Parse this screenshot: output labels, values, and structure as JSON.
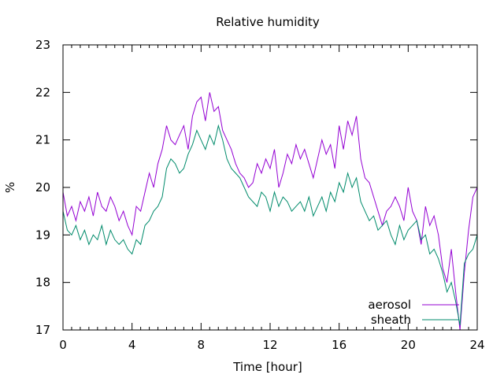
{
  "chart_data": {
    "type": "line",
    "title": "Relative humidity",
    "xlabel": "Time [hour]",
    "ylabel": "%",
    "xlim": [
      0,
      24
    ],
    "ylim": [
      17,
      23
    ],
    "x_ticks": [
      "0",
      "4",
      "8",
      "12",
      "16",
      "20",
      "24"
    ],
    "y_ticks": [
      "17",
      "18",
      "19",
      "20",
      "21",
      "22",
      "23"
    ],
    "grid": false,
    "legend_position": "bottom-right",
    "series": [
      {
        "name": "aerosol",
        "color": "#9400d3",
        "x": [
          0,
          0.25,
          0.5,
          0.75,
          1,
          1.25,
          1.5,
          1.75,
          2,
          2.25,
          2.5,
          2.75,
          3,
          3.25,
          3.5,
          3.75,
          4,
          4.25,
          4.5,
          4.75,
          5,
          5.25,
          5.5,
          5.75,
          6,
          6.25,
          6.5,
          6.75,
          7,
          7.25,
          7.5,
          7.75,
          8,
          8.25,
          8.5,
          8.75,
          9,
          9.25,
          9.5,
          9.75,
          10,
          10.25,
          10.5,
          10.75,
          11,
          11.25,
          11.5,
          11.75,
          12,
          12.25,
          12.5,
          12.75,
          13,
          13.25,
          13.5,
          13.75,
          14,
          14.25,
          14.5,
          14.75,
          15,
          15.25,
          15.5,
          15.75,
          16,
          16.25,
          16.5,
          16.75,
          17,
          17.25,
          17.5,
          17.75,
          18,
          18.25,
          18.5,
          18.75,
          19,
          19.25,
          19.5,
          19.75,
          20,
          20.25,
          20.5,
          20.75,
          21,
          21.25,
          21.5,
          21.75,
          22,
          22.25,
          22.5,
          22.75,
          23,
          23.25,
          23.5,
          23.75,
          24
        ],
        "values": [
          19.9,
          19.4,
          19.6,
          19.3,
          19.7,
          19.5,
          19.8,
          19.4,
          19.9,
          19.6,
          19.5,
          19.8,
          19.6,
          19.3,
          19.5,
          19.2,
          19.0,
          19.6,
          19.5,
          19.9,
          20.3,
          20.0,
          20.5,
          20.8,
          21.3,
          21.0,
          20.9,
          21.1,
          21.3,
          20.8,
          21.5,
          21.8,
          21.9,
          21.4,
          22.0,
          21.6,
          21.7,
          21.2,
          21.0,
          20.8,
          20.5,
          20.3,
          20.2,
          20.0,
          20.1,
          20.5,
          20.3,
          20.6,
          20.4,
          20.8,
          20.0,
          20.3,
          20.7,
          20.5,
          20.9,
          20.6,
          20.8,
          20.5,
          20.2,
          20.6,
          21.0,
          20.7,
          20.9,
          20.4,
          21.3,
          20.8,
          21.4,
          21.1,
          21.5,
          20.6,
          20.2,
          20.1,
          19.8,
          19.5,
          19.2,
          19.5,
          19.6,
          19.8,
          19.6,
          19.3,
          20.0,
          19.5,
          19.3,
          18.8,
          19.6,
          19.2,
          19.4,
          19.0,
          18.3,
          18.0,
          18.7,
          17.8,
          17.0,
          18.2,
          19.1,
          19.8,
          20.0
        ]
      },
      {
        "name": "sheath",
        "color": "#008b6b",
        "x": [
          0,
          0.25,
          0.5,
          0.75,
          1,
          1.25,
          1.5,
          1.75,
          2,
          2.25,
          2.5,
          2.75,
          3,
          3.25,
          3.5,
          3.75,
          4,
          4.25,
          4.5,
          4.75,
          5,
          5.25,
          5.5,
          5.75,
          6,
          6.25,
          6.5,
          6.75,
          7,
          7.25,
          7.5,
          7.75,
          8,
          8.25,
          8.5,
          8.75,
          9,
          9.25,
          9.5,
          9.75,
          10,
          10.25,
          10.5,
          10.75,
          11,
          11.25,
          11.5,
          11.75,
          12,
          12.25,
          12.5,
          12.75,
          13,
          13.25,
          13.5,
          13.75,
          14,
          14.25,
          14.5,
          14.75,
          15,
          15.25,
          15.5,
          15.75,
          16,
          16.25,
          16.5,
          16.75,
          17,
          17.25,
          17.5,
          17.75,
          18,
          18.25,
          18.5,
          18.75,
          19,
          19.25,
          19.5,
          19.75,
          20,
          20.25,
          20.5,
          20.75,
          21,
          21.25,
          21.5,
          21.75,
          22,
          22.25,
          22.5,
          22.75,
          23,
          23.25,
          23.5,
          23.75,
          24
        ],
        "values": [
          19.5,
          19.1,
          19.0,
          19.2,
          18.9,
          19.1,
          18.8,
          19.0,
          18.9,
          19.2,
          18.8,
          19.1,
          18.9,
          18.8,
          18.9,
          18.7,
          18.6,
          18.9,
          18.8,
          19.2,
          19.3,
          19.5,
          19.6,
          19.8,
          20.4,
          20.6,
          20.5,
          20.3,
          20.4,
          20.7,
          20.9,
          21.2,
          21.0,
          20.8,
          21.1,
          20.9,
          21.3,
          21.0,
          20.6,
          20.4,
          20.3,
          20.2,
          20.0,
          19.8,
          19.7,
          19.6,
          19.9,
          19.8,
          19.5,
          19.9,
          19.6,
          19.8,
          19.7,
          19.5,
          19.6,
          19.7,
          19.5,
          19.8,
          19.4,
          19.6,
          19.8,
          19.5,
          19.9,
          19.7,
          20.1,
          19.9,
          20.3,
          20.0,
          20.2,
          19.7,
          19.5,
          19.3,
          19.4,
          19.1,
          19.2,
          19.3,
          19.0,
          18.8,
          19.2,
          18.9,
          19.1,
          19.2,
          19.3,
          18.9,
          19.0,
          18.6,
          18.7,
          18.5,
          18.2,
          17.8,
          18.0,
          17.6,
          17.1,
          18.4,
          18.6,
          18.7,
          19.0
        ]
      }
    ]
  }
}
